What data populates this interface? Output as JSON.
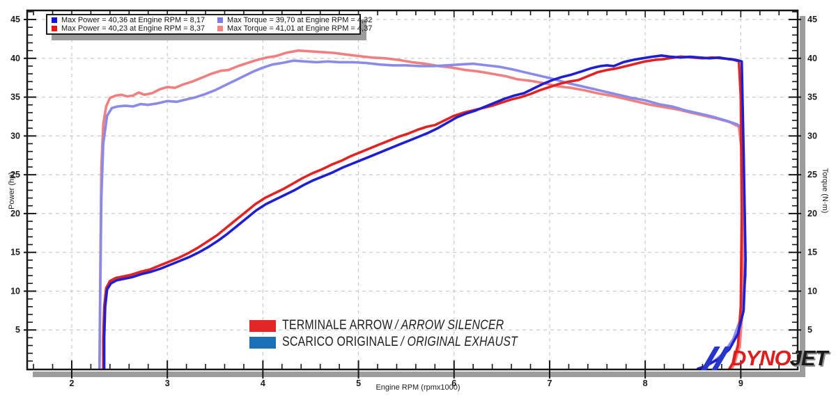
{
  "legend": {
    "items": [
      {
        "color": "#1212e0",
        "label": "Max Power = 40,36 at Engine RPM = 8,17"
      },
      {
        "color": "#ee1414",
        "label": "Max Power = 40,23 at Engine RPM = 8,37"
      },
      {
        "color": "#7b7bea",
        "label": "Max Torque = 39,70 at Engine RPM = 4,32"
      },
      {
        "color": "#f48383",
        "label": "Max Torque = 41,01 at Engine RPM = 4,37"
      }
    ]
  },
  "annotations": [
    {
      "color": "#e32726",
      "label": "TERMINALE ARROW",
      "label2": "/ ARROW SILENCER"
    },
    {
      "color": "#1c70b8",
      "label": "SCARICO ORIGINALE",
      "label2": "/ ORIGINAL EXHAUST"
    }
  ],
  "logo": {
    "dyno": "DYNO",
    "jet": "JET",
    "slash_color": "#2636c8",
    "dyno_color": "#df1d1d",
    "jet_color": "#1b1b1b"
  },
  "chart_data": {
    "type": "line",
    "xlabel": "Engine RPM (rpmx1000)",
    "ylabel_left": "Power (hp)",
    "ylabel_right": "Torque (N·m)",
    "xlim": [
      1.541,
      9.588
    ],
    "ylim": [
      0,
      46.08
    ],
    "x_ticks": [
      2,
      3,
      4,
      5,
      6,
      7,
      8,
      9
    ],
    "y_ticks": [
      5,
      10,
      15,
      20,
      25,
      30,
      35,
      40,
      45
    ],
    "x_minor_step": 0.2,
    "y_minor_step": 1,
    "grid": "dashed",
    "grid_color": "#c9c9c9",
    "legend_position": "top-left",
    "series": [
      {
        "name": "Torque - Arrow silencer",
        "unit": "N·m",
        "color": "#f08080",
        "width": 3.6,
        "points": [
          [
            2.29,
            0
          ],
          [
            2.3,
            14
          ],
          [
            2.31,
            26
          ],
          [
            2.33,
            31.5
          ],
          [
            2.36,
            33.8
          ],
          [
            2.4,
            34.9
          ],
          [
            2.46,
            35.2
          ],
          [
            2.52,
            35.3
          ],
          [
            2.58,
            35.1
          ],
          [
            2.64,
            35.2
          ],
          [
            2.7,
            35.6
          ],
          [
            2.76,
            35.3
          ],
          [
            2.84,
            35.5
          ],
          [
            2.92,
            36.0
          ],
          [
            3.0,
            36.3
          ],
          [
            3.08,
            36.2
          ],
          [
            3.16,
            36.6
          ],
          [
            3.26,
            37.0
          ],
          [
            3.36,
            37.5
          ],
          [
            3.46,
            38.0
          ],
          [
            3.56,
            38.4
          ],
          [
            3.64,
            38.5
          ],
          [
            3.74,
            39.0
          ],
          [
            3.84,
            39.4
          ],
          [
            3.94,
            39.8
          ],
          [
            4.04,
            40.1
          ],
          [
            4.14,
            40.3
          ],
          [
            4.24,
            40.7
          ],
          [
            4.37,
            41.0
          ],
          [
            4.5,
            40.9
          ],
          [
            4.62,
            40.8
          ],
          [
            4.74,
            40.7
          ],
          [
            4.86,
            40.5
          ],
          [
            5.0,
            40.3
          ],
          [
            5.14,
            40.1
          ],
          [
            5.28,
            40.0
          ],
          [
            5.42,
            39.8
          ],
          [
            5.56,
            39.5
          ],
          [
            5.7,
            39.3
          ],
          [
            5.84,
            39.0
          ],
          [
            5.98,
            38.8
          ],
          [
            6.12,
            38.5
          ],
          [
            6.26,
            38.3
          ],
          [
            6.4,
            38.0
          ],
          [
            6.54,
            37.7
          ],
          [
            6.66,
            37.3
          ],
          [
            6.8,
            37.1
          ],
          [
            6.94,
            36.8
          ],
          [
            7.08,
            36.4
          ],
          [
            7.22,
            36.2
          ],
          [
            7.36,
            35.9
          ],
          [
            7.5,
            35.5
          ],
          [
            7.64,
            35.2
          ],
          [
            7.78,
            34.8
          ],
          [
            7.92,
            34.4
          ],
          [
            8.06,
            34.0
          ],
          [
            8.2,
            33.7
          ],
          [
            8.34,
            33.4
          ],
          [
            8.48,
            33.0
          ],
          [
            8.62,
            32.6
          ],
          [
            8.76,
            32.2
          ],
          [
            8.88,
            31.8
          ],
          [
            8.98,
            31.2
          ],
          [
            9.01,
            28
          ],
          [
            9.03,
            18
          ],
          [
            9.02,
            8
          ],
          [
            8.99,
            3
          ],
          [
            8.93,
            0.5
          ],
          [
            8.9,
            0
          ]
        ]
      },
      {
        "name": "Torque - original exhaust",
        "unit": "N·m",
        "color": "#8a8ae8",
        "width": 3.6,
        "points": [
          [
            2.29,
            0
          ],
          [
            2.3,
            11
          ],
          [
            2.31,
            22
          ],
          [
            2.33,
            29
          ],
          [
            2.37,
            32.6
          ],
          [
            2.42,
            33.6
          ],
          [
            2.48,
            33.8
          ],
          [
            2.56,
            33.9
          ],
          [
            2.64,
            33.8
          ],
          [
            2.72,
            34.1
          ],
          [
            2.8,
            34.0
          ],
          [
            2.9,
            34.2
          ],
          [
            3.0,
            34.5
          ],
          [
            3.1,
            34.4
          ],
          [
            3.2,
            34.7
          ],
          [
            3.3,
            35.0
          ],
          [
            3.4,
            35.4
          ],
          [
            3.5,
            35.9
          ],
          [
            3.6,
            36.5
          ],
          [
            3.7,
            37.1
          ],
          [
            3.8,
            37.7
          ],
          [
            3.9,
            38.3
          ],
          [
            4.0,
            38.8
          ],
          [
            4.1,
            39.2
          ],
          [
            4.2,
            39.4
          ],
          [
            4.32,
            39.7
          ],
          [
            4.44,
            39.6
          ],
          [
            4.56,
            39.5
          ],
          [
            4.68,
            39.6
          ],
          [
            4.8,
            39.5
          ],
          [
            4.94,
            39.5
          ],
          [
            5.08,
            39.4
          ],
          [
            5.22,
            39.2
          ],
          [
            5.36,
            39.1
          ],
          [
            5.5,
            39.1
          ],
          [
            5.64,
            39.0
          ],
          [
            5.78,
            39.0
          ],
          [
            5.92,
            39.1
          ],
          [
            6.06,
            39.2
          ],
          [
            6.2,
            39.3
          ],
          [
            6.34,
            39.1
          ],
          [
            6.48,
            38.9
          ],
          [
            6.6,
            38.6
          ],
          [
            6.74,
            38.2
          ],
          [
            6.88,
            37.8
          ],
          [
            7.02,
            37.4
          ],
          [
            7.16,
            36.9
          ],
          [
            7.3,
            36.5
          ],
          [
            7.44,
            36.1
          ],
          [
            7.58,
            35.7
          ],
          [
            7.72,
            35.3
          ],
          [
            7.86,
            34.9
          ],
          [
            8.0,
            34.6
          ],
          [
            8.14,
            34.1
          ],
          [
            8.28,
            33.8
          ],
          [
            8.42,
            33.3
          ],
          [
            8.56,
            32.9
          ],
          [
            8.7,
            32.5
          ],
          [
            8.84,
            32.0
          ],
          [
            8.96,
            31.5
          ],
          [
            9.02,
            31.0
          ],
          [
            9.04,
            20
          ],
          [
            9.05,
            12
          ],
          [
            9.0,
            6.5
          ],
          [
            8.92,
            3.8
          ],
          [
            8.82,
            2.0
          ],
          [
            8.7,
            0.8
          ],
          [
            8.6,
            0
          ]
        ]
      },
      {
        "name": "Power - Arrow silencer",
        "unit": "hp",
        "color": "#e02424",
        "width": 3.6,
        "points": [
          [
            2.33,
            0
          ],
          [
            2.33,
            4
          ],
          [
            2.34,
            8
          ],
          [
            2.36,
            10.4
          ],
          [
            2.4,
            11.3
          ],
          [
            2.46,
            11.7
          ],
          [
            2.54,
            11.9
          ],
          [
            2.62,
            12.1
          ],
          [
            2.72,
            12.5
          ],
          [
            2.82,
            12.8
          ],
          [
            2.92,
            13.3
          ],
          [
            3.02,
            13.8
          ],
          [
            3.12,
            14.3
          ],
          [
            3.22,
            14.9
          ],
          [
            3.32,
            15.6
          ],
          [
            3.42,
            16.4
          ],
          [
            3.52,
            17.2
          ],
          [
            3.62,
            18.2
          ],
          [
            3.72,
            19.2
          ],
          [
            3.82,
            20.2
          ],
          [
            3.92,
            21.2
          ],
          [
            4.02,
            22.0
          ],
          [
            4.12,
            22.6
          ],
          [
            4.22,
            23.2
          ],
          [
            4.32,
            23.9
          ],
          [
            4.42,
            24.6
          ],
          [
            4.52,
            25.2
          ],
          [
            4.62,
            25.7
          ],
          [
            4.72,
            26.3
          ],
          [
            4.82,
            26.8
          ],
          [
            4.92,
            27.4
          ],
          [
            5.02,
            27.9
          ],
          [
            5.12,
            28.4
          ],
          [
            5.22,
            28.9
          ],
          [
            5.32,
            29.4
          ],
          [
            5.42,
            29.9
          ],
          [
            5.52,
            30.3
          ],
          [
            5.62,
            30.8
          ],
          [
            5.72,
            31.2
          ],
          [
            5.8,
            31.4
          ],
          [
            5.9,
            32.0
          ],
          [
            6.0,
            32.6
          ],
          [
            6.1,
            33.0
          ],
          [
            6.2,
            33.3
          ],
          [
            6.3,
            33.6
          ],
          [
            6.4,
            33.9
          ],
          [
            6.5,
            34.3
          ],
          [
            6.6,
            34.7
          ],
          [
            6.7,
            35.0
          ],
          [
            6.8,
            35.4
          ],
          [
            6.9,
            35.9
          ],
          [
            7.0,
            36.3
          ],
          [
            7.1,
            36.7
          ],
          [
            7.2,
            37.0
          ],
          [
            7.3,
            37.2
          ],
          [
            7.4,
            37.7
          ],
          [
            7.5,
            38.2
          ],
          [
            7.6,
            38.5
          ],
          [
            7.7,
            38.7
          ],
          [
            7.8,
            39.0
          ],
          [
            7.9,
            39.3
          ],
          [
            8.0,
            39.6
          ],
          [
            8.1,
            39.8
          ],
          [
            8.2,
            39.9
          ],
          [
            8.37,
            40.23
          ],
          [
            8.5,
            40.1
          ],
          [
            8.6,
            40.0
          ],
          [
            8.7,
            40.1
          ],
          [
            8.8,
            40.0
          ],
          [
            8.9,
            39.9
          ],
          [
            8.98,
            39.6
          ],
          [
            9.0,
            35
          ],
          [
            9.01,
            20
          ],
          [
            9.0,
            8
          ],
          [
            8.97,
            3
          ],
          [
            8.92,
            0.8
          ],
          [
            8.88,
            0
          ]
        ]
      },
      {
        "name": "Power - original exhaust",
        "unit": "hp",
        "color": "#1f1fd2",
        "width": 3.6,
        "points": [
          [
            2.34,
            0
          ],
          [
            2.34,
            4
          ],
          [
            2.35,
            8
          ],
          [
            2.37,
            10.2
          ],
          [
            2.41,
            11.0
          ],
          [
            2.47,
            11.4
          ],
          [
            2.55,
            11.6
          ],
          [
            2.63,
            11.8
          ],
          [
            2.73,
            12.2
          ],
          [
            2.83,
            12.5
          ],
          [
            2.93,
            12.9
          ],
          [
            3.03,
            13.4
          ],
          [
            3.13,
            13.9
          ],
          [
            3.23,
            14.4
          ],
          [
            3.33,
            15.0
          ],
          [
            3.43,
            15.7
          ],
          [
            3.53,
            16.5
          ],
          [
            3.63,
            17.4
          ],
          [
            3.73,
            18.4
          ],
          [
            3.83,
            19.4
          ],
          [
            3.93,
            20.4
          ],
          [
            4.03,
            21.2
          ],
          [
            4.13,
            21.8
          ],
          [
            4.23,
            22.4
          ],
          [
            4.33,
            23.0
          ],
          [
            4.43,
            23.7
          ],
          [
            4.53,
            24.3
          ],
          [
            4.63,
            24.8
          ],
          [
            4.73,
            25.3
          ],
          [
            4.83,
            25.9
          ],
          [
            4.93,
            26.4
          ],
          [
            5.03,
            26.9
          ],
          [
            5.13,
            27.4
          ],
          [
            5.23,
            27.9
          ],
          [
            5.33,
            28.4
          ],
          [
            5.43,
            28.9
          ],
          [
            5.53,
            29.4
          ],
          [
            5.63,
            29.9
          ],
          [
            5.73,
            30.4
          ],
          [
            5.83,
            31.0
          ],
          [
            5.93,
            31.7
          ],
          [
            6.03,
            32.4
          ],
          [
            6.13,
            32.9
          ],
          [
            6.23,
            33.3
          ],
          [
            6.33,
            33.8
          ],
          [
            6.43,
            34.3
          ],
          [
            6.53,
            34.8
          ],
          [
            6.63,
            35.2
          ],
          [
            6.73,
            35.5
          ],
          [
            6.83,
            36.1
          ],
          [
            6.93,
            36.7
          ],
          [
            7.03,
            37.2
          ],
          [
            7.13,
            37.6
          ],
          [
            7.23,
            37.9
          ],
          [
            7.33,
            38.3
          ],
          [
            7.43,
            38.7
          ],
          [
            7.53,
            39.0
          ],
          [
            7.6,
            39.1
          ],
          [
            7.67,
            39.0
          ],
          [
            7.77,
            39.5
          ],
          [
            7.87,
            39.8
          ],
          [
            7.97,
            40.0
          ],
          [
            8.07,
            40.2
          ],
          [
            8.17,
            40.36
          ],
          [
            8.27,
            40.2
          ],
          [
            8.37,
            40.1
          ],
          [
            8.47,
            40.2
          ],
          [
            8.57,
            40.1
          ],
          [
            8.67,
            40.0
          ],
          [
            8.77,
            40.1
          ],
          [
            8.87,
            39.9
          ],
          [
            8.95,
            39.8
          ],
          [
            9.01,
            39.6
          ],
          [
            9.03,
            28
          ],
          [
            9.05,
            14
          ],
          [
            9.03,
            7.5
          ],
          [
            8.97,
            4.5
          ],
          [
            8.88,
            2.5
          ],
          [
            8.76,
            1.2
          ],
          [
            8.62,
            0.3
          ],
          [
            8.55,
            0
          ]
        ]
      }
    ],
    "max_annotations": [
      {
        "label": "Max Power = 40,36 at Engine RPM = 8,17"
      },
      {
        "label": "Max Power = 40,23 at Engine RPM = 8,37"
      },
      {
        "label": "Max Torque = 39,70 at Engine RPM = 4,32"
      },
      {
        "label": "Max Torque = 41,01 at Engine RPM = 4,37"
      }
    ]
  }
}
